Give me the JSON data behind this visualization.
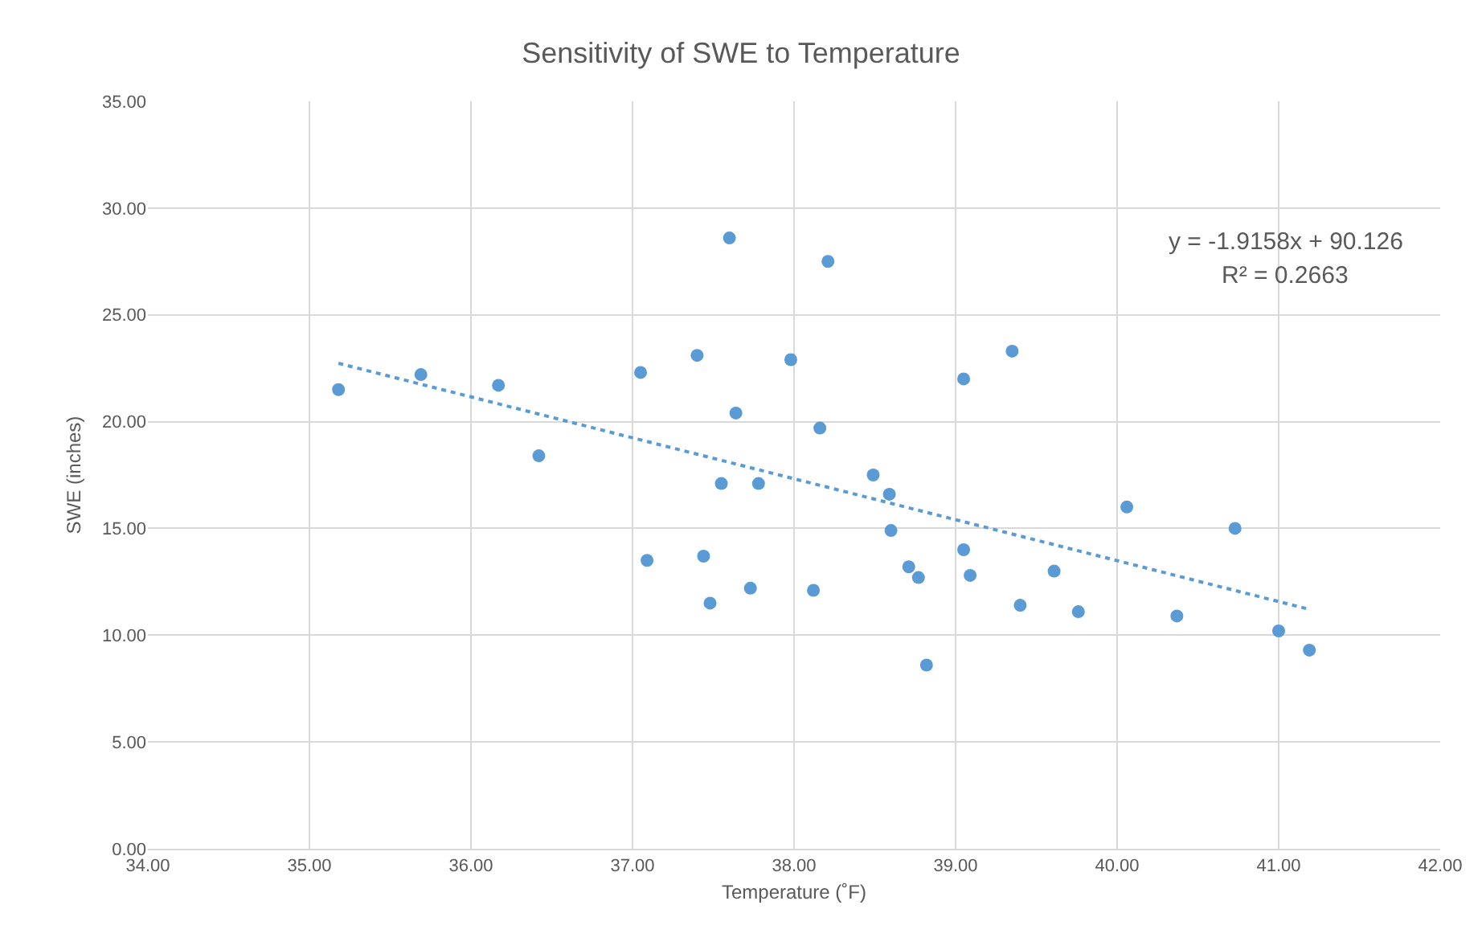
{
  "chart_data": {
    "type": "scatter",
    "title": "Sensitivity of SWE to Temperature",
    "xlabel": "Temperature (˚F)",
    "ylabel": "SWE (inches)",
    "series": [
      {
        "color": "#5b9bd5",
        "marker": "circle",
        "x": [
          35.18,
          35.69,
          36.17,
          36.42,
          37.05,
          37.4,
          37.09,
          37.44,
          37.48,
          37.55,
          37.6,
          37.64,
          37.73,
          37.78,
          37.98,
          38.12,
          38.16,
          38.21,
          38.49,
          38.59,
          38.6,
          38.71,
          38.77,
          38.82,
          39.05,
          39.05,
          39.09,
          39.35,
          39.4,
          39.61,
          39.76,
          40.06,
          40.37,
          40.73,
          41.0,
          41.19
        ],
        "values": [
          21.5,
          22.2,
          21.7,
          18.4,
          22.3,
          23.1,
          13.5,
          13.7,
          11.5,
          17.1,
          28.6,
          20.4,
          12.2,
          17.1,
          22.9,
          12.1,
          19.7,
          27.5,
          17.5,
          16.6,
          14.9,
          13.2,
          12.7,
          8.6,
          22.0,
          14.0,
          12.8,
          23.3,
          11.4,
          13.0,
          11.1,
          16.0,
          10.9,
          15.0,
          10.2,
          9.3
        ]
      },
      {
        "type": "line",
        "color": "#5b9bd5",
        "line_style": "dotted",
        "x": [
          35.18,
          41.19
        ],
        "values": [
          22.73,
          11.21
        ]
      }
    ],
    "annotations": [
      "y = -1.9158x + 90.126",
      "R² = 0.2663"
    ],
    "xlim": [
      34,
      42
    ],
    "xticks": [
      {
        "value": 34,
        "label": "34.00"
      },
      {
        "value": 35,
        "label": "35.00"
      },
      {
        "value": 36,
        "label": "36.00"
      },
      {
        "value": 37,
        "label": "37.00"
      },
      {
        "value": 38,
        "label": "38.00"
      },
      {
        "value": 39,
        "label": "39.00"
      },
      {
        "value": 40,
        "label": "40.00"
      },
      {
        "value": 41,
        "label": "41.00"
      },
      {
        "value": 42,
        "label": "42.00"
      }
    ],
    "ylim": [
      0,
      35
    ],
    "yticks": [
      {
        "value": 0,
        "label": "0.00"
      },
      {
        "value": 5,
        "label": "5.00"
      },
      {
        "value": 10,
        "label": "10.00"
      },
      {
        "value": 15,
        "label": "15.00"
      },
      {
        "value": 20,
        "label": "20.00"
      },
      {
        "value": 25,
        "label": "25.00"
      },
      {
        "value": 30,
        "label": "30.00"
      },
      {
        "value": 35,
        "label": "35.00"
      }
    ],
    "grid": true
  }
}
